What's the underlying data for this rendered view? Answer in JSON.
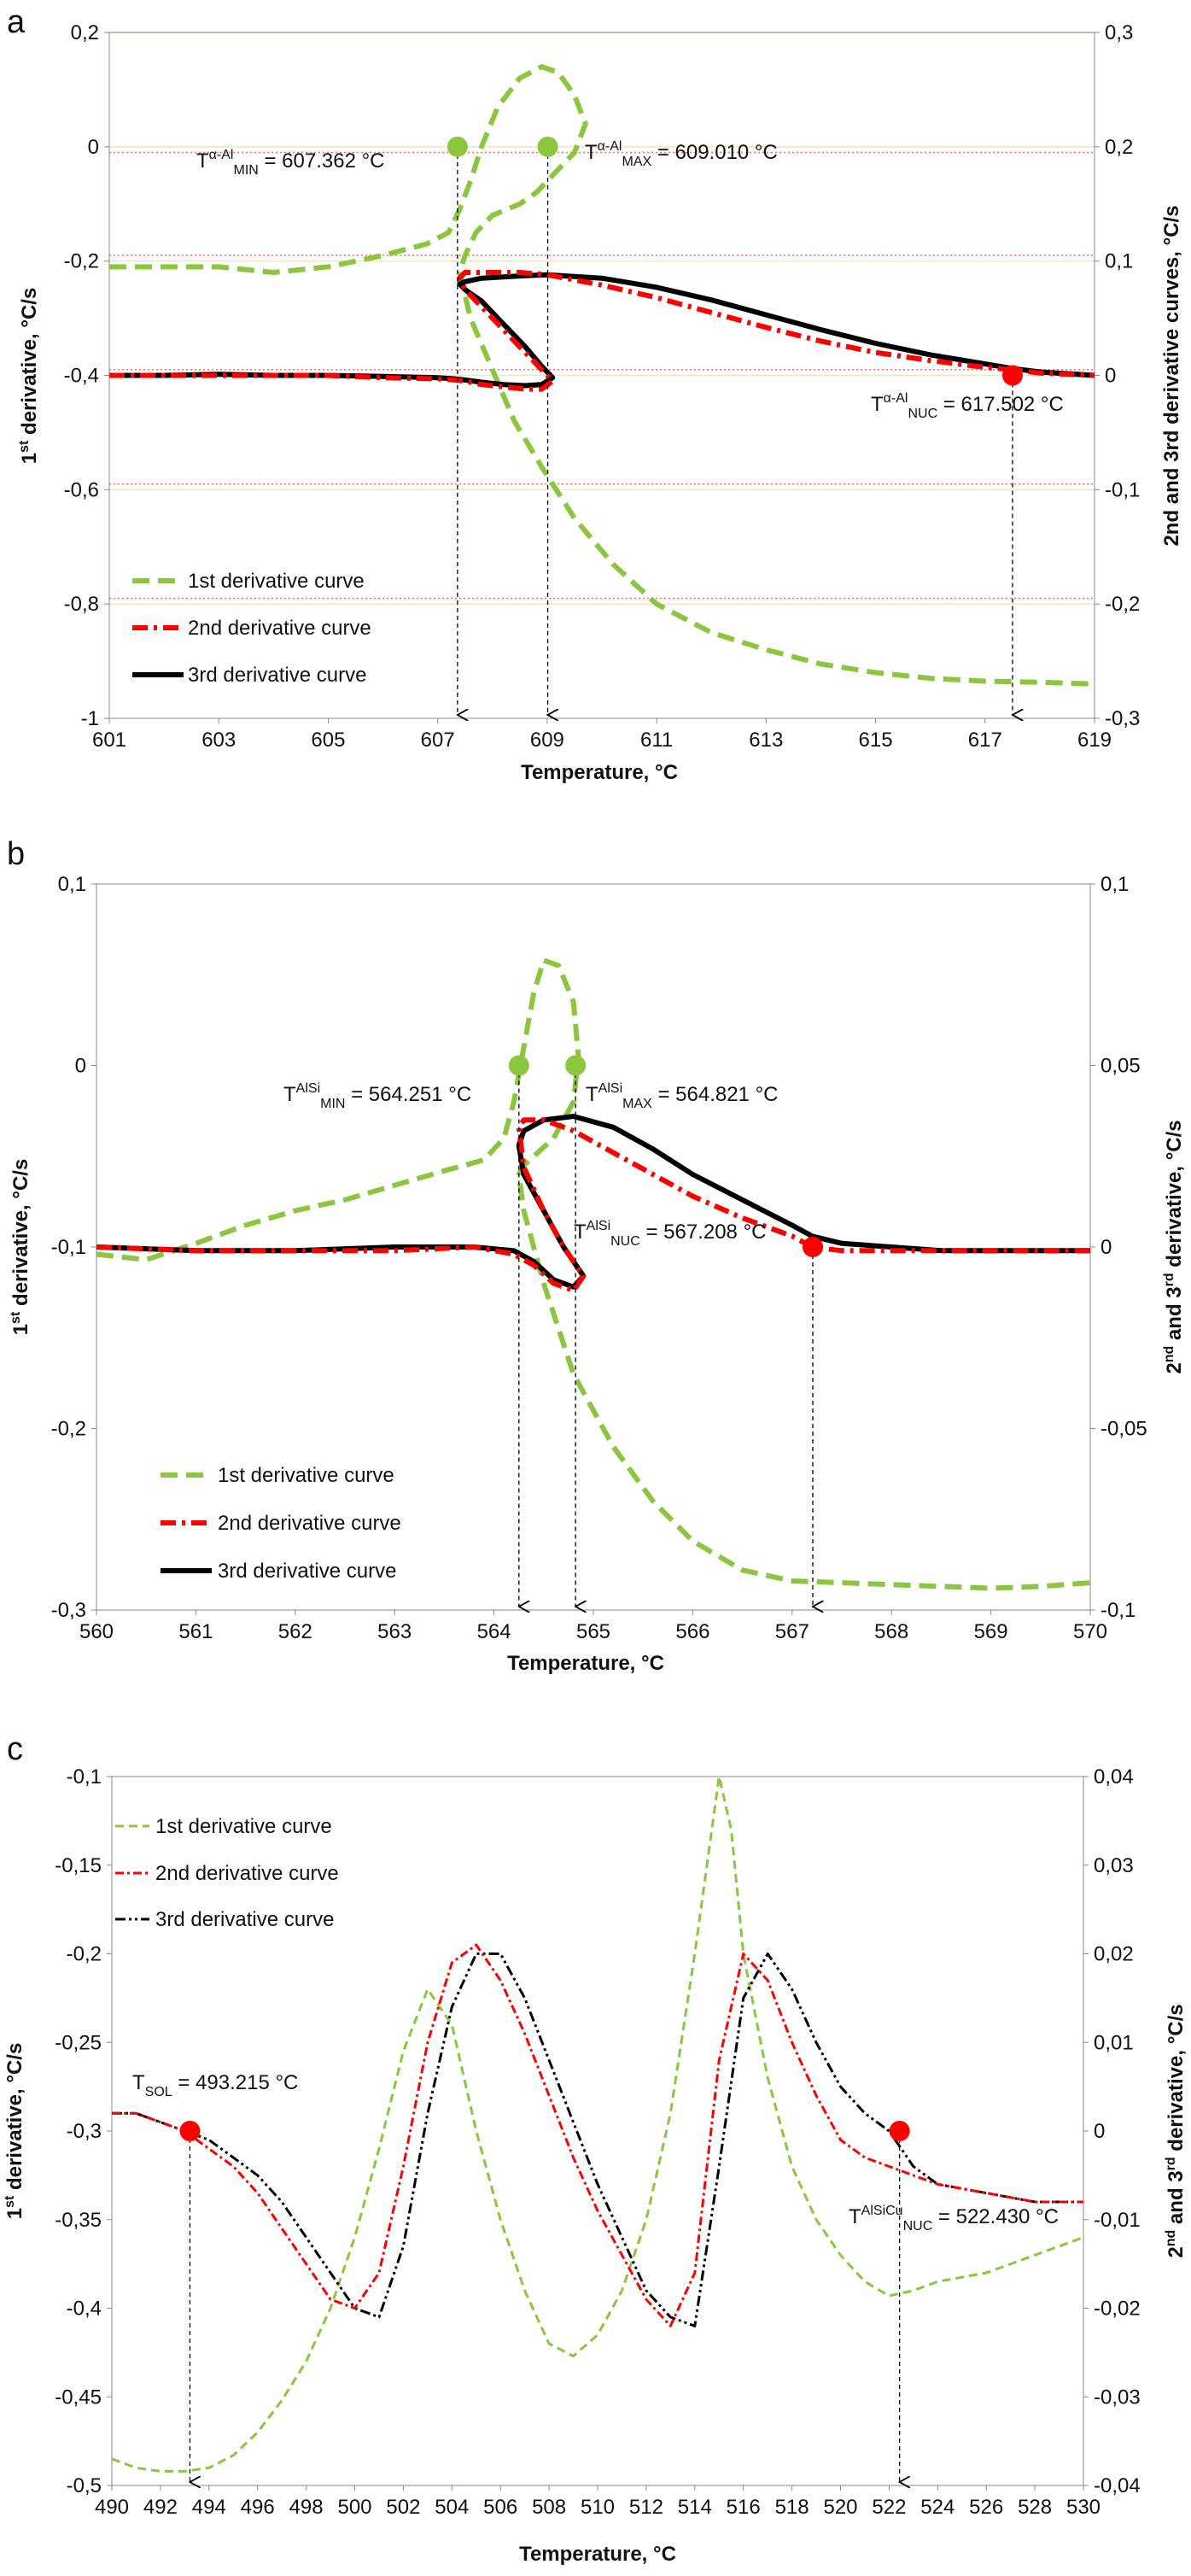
{
  "colors": {
    "first": "#8cc63f",
    "second": "#ff0000",
    "third": "#000000",
    "grid_red": "#ff6a6a",
    "grid_yellow": "#f2e6b3",
    "marker_green": "#8cc63f",
    "marker_red": "#ff0000"
  },
  "chart_data": [
    {
      "panel": "a",
      "type": "line",
      "xlabel": "Temperature, °C",
      "ylabel_left": {
        "base": "1",
        "sup": "st",
        "rest": " derivative, °C/s"
      },
      "ylabel_right": "2nd and 3rd derivative curves, °C/s",
      "xlim": [
        601,
        619
      ],
      "ylim_left": [
        -1,
        0.2
      ],
      "ylim_right": [
        -0.3,
        0.3
      ],
      "xticks": [
        "601",
        "603",
        "605",
        "607",
        "609",
        "611",
        "613",
        "615",
        "617",
        "619"
      ],
      "yticks_left": [
        "0,2",
        "0",
        "-0,2",
        "-0,4",
        "-0,6",
        "-0,8",
        "-1"
      ],
      "yticks_right": [
        "0,3",
        "0,2",
        "0,1",
        "0",
        "-0,1",
        "-0,2",
        "-0,3"
      ],
      "legend": [
        "1st derivative curve",
        "2nd derivative curve",
        "3rd derivative curve"
      ],
      "series": [
        {
          "name": "1st derivative curve",
          "axis": "left",
          "x": [
            601,
            602,
            603,
            604,
            605,
            606,
            606.8,
            607.2,
            607.4,
            607.6,
            607.8,
            608.1,
            608.5,
            608.9,
            609.2,
            609.5,
            609.7,
            609.5,
            609.2,
            609.0,
            608.8,
            608.5,
            608.0,
            607.7,
            607.5,
            607.4,
            607.6,
            608.0,
            608.4,
            608.9,
            609.5,
            610.2,
            611.0,
            612.0,
            613.0,
            614.0,
            615.0,
            616.0,
            617.0,
            618.0,
            619.0
          ],
          "y": [
            -0.21,
            -0.21,
            -0.21,
            -0.22,
            -0.21,
            -0.19,
            -0.17,
            -0.15,
            -0.11,
            -0.06,
            0.0,
            0.07,
            0.12,
            0.14,
            0.13,
            0.09,
            0.04,
            -0.01,
            -0.04,
            -0.06,
            -0.08,
            -0.1,
            -0.12,
            -0.15,
            -0.19,
            -0.22,
            -0.3,
            -0.39,
            -0.48,
            -0.56,
            -0.65,
            -0.73,
            -0.8,
            -0.85,
            -0.88,
            -0.905,
            -0.92,
            -0.93,
            -0.935,
            -0.937,
            -0.94
          ]
        },
        {
          "name": "2nd derivative curve",
          "axis": "right",
          "x": [
            601,
            602,
            603,
            604,
            605,
            606,
            607,
            607.3,
            607.5,
            607.8,
            608.2,
            608.6,
            608.9,
            609.1,
            608.9,
            608.6,
            608.2,
            607.8,
            607.5,
            607.4,
            607.5,
            607.8,
            608.5,
            609.0,
            610.0,
            611.0,
            612.0,
            613.0,
            614.0,
            615.0,
            616.0,
            617.0,
            617.5,
            618.0,
            619.0
          ],
          "y": [
            0.0,
            0.0,
            0.0,
            0.0,
            0.0,
            -0.002,
            -0.003,
            -0.004,
            -0.005,
            -0.008,
            -0.01,
            -0.012,
            -0.012,
            -0.005,
            0.005,
            0.02,
            0.04,
            0.06,
            0.075,
            0.085,
            0.09,
            0.09,
            0.09,
            0.088,
            0.079,
            0.068,
            0.055,
            0.042,
            0.03,
            0.02,
            0.013,
            0.007,
            0.005,
            0.002,
            0.0
          ]
        },
        {
          "name": "3rd derivative curve",
          "axis": "right",
          "x": [
            601,
            602,
            603,
            604,
            605,
            606,
            607,
            607.3,
            607.5,
            607.8,
            608.2,
            608.6,
            608.9,
            609.1,
            608.9,
            608.6,
            608.2,
            607.8,
            607.5,
            607.4,
            607.5,
            607.8,
            608.5,
            609.0,
            610.0,
            611.0,
            612.0,
            613.0,
            614.0,
            615.0,
            616.0,
            617.0,
            617.5,
            618.0,
            619.0
          ],
          "y": [
            0.0,
            0.0,
            0.001,
            0.0,
            0.0,
            -0.001,
            -0.002,
            -0.003,
            -0.004,
            -0.006,
            -0.008,
            -0.009,
            -0.008,
            -0.002,
            0.008,
            0.025,
            0.045,
            0.065,
            0.075,
            0.08,
            0.082,
            0.085,
            0.087,
            0.088,
            0.085,
            0.077,
            0.066,
            0.053,
            0.04,
            0.028,
            0.018,
            0.01,
            0.006,
            0.003,
            0.0
          ]
        }
      ],
      "markers": [
        {
          "color": "green",
          "x": 607.362,
          "y": 0.0,
          "axis": "left"
        },
        {
          "color": "green",
          "x": 609.01,
          "y": 0.0,
          "axis": "left"
        },
        {
          "color": "red",
          "x": 617.502,
          "y": 0.0,
          "axis": "right"
        }
      ],
      "arrows": [
        607.362,
        609.01,
        617.502
      ],
      "hlines_red_right": [
        0.195,
        0.105,
        0.005,
        -0.095,
        -0.195
      ],
      "hlines_yellow_left": [
        0.2,
        0.0,
        -0.2,
        -0.4,
        -0.6,
        -0.8
      ]
    },
    {
      "panel": "b",
      "type": "line",
      "xlabel": "Temperature, °C",
      "ylabel_left": {
        "base": "1",
        "sup": "st",
        "rest": " derivative, °C/s"
      },
      "ylabel_right": {
        "base": "2",
        "sup": "nd",
        "mid": " and 3",
        "sup2": "rd",
        "rest": " derivative, °C/s"
      },
      "xlim": [
        560,
        570
      ],
      "ylim_left": [
        -0.3,
        0.1
      ],
      "ylim_right": [
        -0.1,
        0.1
      ],
      "xticks": [
        "560",
        "561",
        "562",
        "563",
        "564",
        "565",
        "566",
        "567",
        "568",
        "569",
        "570"
      ],
      "yticks_left": [
        "0,1",
        "0",
        "-0,1",
        "-0,2",
        "-0,3"
      ],
      "yticks_right": [
        "0,1",
        "0,05",
        "0",
        "-0,05",
        "-0,1"
      ],
      "legend": [
        "1st derivative curve",
        "2nd derivative curve",
        "3rd derivative curve"
      ],
      "series": [
        {
          "name": "1st derivative curve",
          "axis": "left",
          "x": [
            560,
            560.5,
            561,
            561.5,
            562,
            562.5,
            563,
            563.5,
            563.9,
            564.1,
            564.2,
            564.3,
            564.4,
            564.5,
            564.65,
            564.8,
            564.85,
            564.8,
            564.6,
            564.4,
            564.3,
            564.25,
            564.3,
            564.5,
            564.8,
            565.2,
            565.6,
            566,
            566.5,
            567,
            567.5,
            568,
            568.5,
            569,
            569.5,
            570
          ],
          "y": [
            -0.104,
            -0.107,
            -0.098,
            -0.088,
            -0.08,
            -0.074,
            -0.066,
            -0.058,
            -0.052,
            -0.04,
            -0.02,
            0.01,
            0.04,
            0.058,
            0.055,
            0.035,
            0.005,
            -0.02,
            -0.04,
            -0.05,
            -0.055,
            -0.06,
            -0.08,
            -0.12,
            -0.17,
            -0.21,
            -0.24,
            -0.262,
            -0.278,
            -0.284,
            -0.285,
            -0.286,
            -0.287,
            -0.288,
            -0.287,
            -0.285
          ]
        },
        {
          "name": "2nd derivative curve",
          "axis": "right",
          "x": [
            560,
            561,
            562,
            563,
            563.8,
            564.2,
            564.4,
            564.6,
            564.8,
            564.9,
            564.7,
            564.5,
            564.3,
            564.25,
            564.3,
            564.5,
            564.8,
            565.2,
            565.6,
            566,
            566.5,
            567,
            567.2,
            567.5,
            568,
            568.5,
            569,
            570
          ],
          "y": [
            0.0,
            -0.001,
            -0.001,
            -0.001,
            0.0,
            -0.002,
            -0.005,
            -0.01,
            -0.012,
            -0.008,
            0.0,
            0.01,
            0.022,
            0.033,
            0.035,
            0.035,
            0.032,
            0.026,
            0.02,
            0.014,
            0.008,
            0.003,
            0.0,
            -0.001,
            -0.001,
            -0.001,
            -0.001,
            -0.001
          ]
        },
        {
          "name": "3rd derivative curve",
          "axis": "right",
          "x": [
            560,
            561,
            562,
            563,
            563.8,
            564.2,
            564.4,
            564.6,
            564.8,
            564.9,
            564.7,
            564.5,
            564.3,
            564.25,
            564.3,
            564.5,
            564.8,
            565.2,
            565.6,
            566,
            566.5,
            567,
            567.2,
            567.5,
            568,
            568.5,
            569,
            570
          ],
          "y": [
            0.0,
            -0.001,
            -0.001,
            0.0,
            0.0,
            -0.001,
            -0.004,
            -0.009,
            -0.011,
            -0.008,
            0.0,
            0.01,
            0.02,
            0.028,
            0.032,
            0.035,
            0.036,
            0.033,
            0.027,
            0.02,
            0.013,
            0.006,
            0.003,
            0.001,
            0.0,
            -0.001,
            -0.001,
            -0.001
          ]
        }
      ],
      "markers": [
        {
          "color": "green",
          "x": 564.251,
          "y": 0.0,
          "axis": "left"
        },
        {
          "color": "green",
          "x": 564.821,
          "y": 0.0,
          "axis": "left"
        },
        {
          "color": "red",
          "x": 567.208,
          "y": 0.0,
          "axis": "right"
        }
      ],
      "arrows": [
        564.251,
        564.821,
        567.208
      ]
    },
    {
      "panel": "c",
      "type": "line",
      "xlabel": "Temperature, °C",
      "ylabel_left": {
        "base": "1",
        "sup": "st",
        "rest": " derivative, °C/s"
      },
      "ylabel_right": {
        "base": "2",
        "sup": "nd",
        "mid": " and 3",
        "sup2": "rd",
        "rest": " derivative, °C/s"
      },
      "xlim": [
        490,
        530
      ],
      "ylim_left": [
        -0.5,
        -0.1
      ],
      "ylim_right": [
        -0.04,
        0.04
      ],
      "xticks": [
        "490",
        "492",
        "494",
        "496",
        "498",
        "500",
        "502",
        "504",
        "506",
        "508",
        "510",
        "512",
        "514",
        "516",
        "518",
        "520",
        "522",
        "524",
        "526",
        "528",
        "530"
      ],
      "yticks_left": [
        "-0,1",
        "-0,15",
        "-0,2",
        "-0,25",
        "-0,3",
        "-0,35",
        "-0,4",
        "-0,45",
        "-0,5"
      ],
      "yticks_right": [
        "0,04",
        "0,03",
        "0,02",
        "0,01",
        "0",
        "-0,01",
        "-0,02",
        "-0,03",
        "-0,04"
      ],
      "legend": [
        "1st derivative curve",
        "2nd derivative curve",
        "3rd derivative curve"
      ],
      "series": [
        {
          "name": "1st derivative curve",
          "axis": "left",
          "x": [
            490,
            491,
            492,
            493,
            494,
            495,
            496,
            497,
            498,
            499,
            500,
            501,
            502,
            503,
            504,
            505,
            506,
            507,
            508,
            509,
            510,
            511,
            512,
            513,
            514,
            514.5,
            515,
            515.5,
            516,
            517,
            518,
            519,
            520,
            521,
            522,
            523,
            524,
            526,
            528,
            530
          ],
          "y": [
            -0.485,
            -0.49,
            -0.492,
            -0.492,
            -0.49,
            -0.483,
            -0.47,
            -0.452,
            -0.43,
            -0.4,
            -0.36,
            -0.31,
            -0.255,
            -0.22,
            -0.24,
            -0.3,
            -0.35,
            -0.39,
            -0.42,
            -0.427,
            -0.415,
            -0.39,
            -0.35,
            -0.29,
            -0.2,
            -0.15,
            -0.1,
            -0.13,
            -0.2,
            -0.27,
            -0.32,
            -0.35,
            -0.37,
            -0.385,
            -0.393,
            -0.39,
            -0.385,
            -0.38,
            -0.37,
            -0.36
          ]
        },
        {
          "name": "2nd derivative curve",
          "axis": "right",
          "x": [
            490,
            491,
            492,
            493,
            494,
            495,
            496,
            497,
            498,
            499,
            500,
            501,
            502,
            503,
            504,
            505,
            506,
            507,
            508,
            509,
            510,
            511,
            512,
            513,
            514,
            515,
            516,
            517,
            518,
            519,
            520,
            521,
            522,
            523,
            524,
            526,
            528,
            530
          ],
          "y": [
            0.002,
            0.002,
            0.001,
            0.0,
            -0.002,
            -0.004,
            -0.007,
            -0.011,
            -0.015,
            -0.019,
            -0.02,
            -0.016,
            -0.004,
            0.01,
            0.019,
            0.021,
            0.017,
            0.011,
            0.004,
            -0.003,
            -0.009,
            -0.014,
            -0.019,
            -0.022,
            -0.016,
            0.008,
            0.02,
            0.017,
            0.01,
            0.004,
            -0.001,
            -0.003,
            -0.004,
            -0.005,
            -0.006,
            -0.007,
            -0.008,
            -0.008
          ]
        },
        {
          "name": "3rd derivative curve",
          "axis": "right",
          "x": [
            490,
            491,
            492,
            493,
            494,
            495,
            496,
            497,
            498,
            499,
            500,
            501,
            502,
            503,
            504,
            505,
            506,
            507,
            508,
            509,
            510,
            511,
            512,
            513,
            514,
            515,
            516,
            517,
            518,
            519,
            520,
            521,
            522,
            523,
            524,
            526,
            528,
            530
          ],
          "y": [
            0.002,
            0.002,
            0.001,
            0.0,
            -0.001,
            -0.003,
            -0.005,
            -0.008,
            -0.012,
            -0.016,
            -0.02,
            -0.021,
            -0.013,
            0.002,
            0.014,
            0.02,
            0.02,
            0.015,
            0.008,
            0.001,
            -0.006,
            -0.012,
            -0.018,
            -0.021,
            -0.022,
            -0.004,
            0.015,
            0.02,
            0.016,
            0.01,
            0.005,
            0.002,
            0.0,
            -0.004,
            -0.006,
            -0.007,
            -0.008,
            -0.008
          ]
        }
      ],
      "markers": [
        {
          "color": "red",
          "x": 493.215,
          "y": 0.0,
          "axis": "right"
        },
        {
          "color": "red",
          "x": 522.43,
          "y": 0.0,
          "axis": "right"
        }
      ],
      "arrows": [
        493.215,
        522.43
      ]
    }
  ],
  "annotations": {
    "a": {
      "t_min": {
        "t": "T",
        "sup": "α-Al",
        "sub": "MIN",
        "val": " = 607.362 °C"
      },
      "t_max": {
        "t": "T",
        "sup": "α-Al",
        "sub": "MAX",
        "val": " = 609.010 °C"
      },
      "t_nuc": {
        "t": "T",
        "sup": "α-Al",
        "sub": "NUC",
        "val": " = 617.502 °C"
      }
    },
    "b": {
      "t_min": {
        "t": "T",
        "sup": "AlSi",
        "sub": "MIN",
        "val": " = 564.251 °C"
      },
      "t_max": {
        "t": "T",
        "sup": "AlSi",
        "sub": "MAX",
        "val": " = 564.821 °C"
      },
      "t_nuc": {
        "t": "T",
        "sup": "AlSi",
        "sub": "NUC",
        "val": " = 567.208 °C"
      }
    },
    "c": {
      "t_sol": {
        "t": "T",
        "sub": "SOL",
        "val": " = 493.215 °C"
      },
      "t_nuc": {
        "t": "T",
        "sup": "AlSiCu",
        "sub": "NUC",
        "val": " = 522.430 °C"
      }
    }
  }
}
